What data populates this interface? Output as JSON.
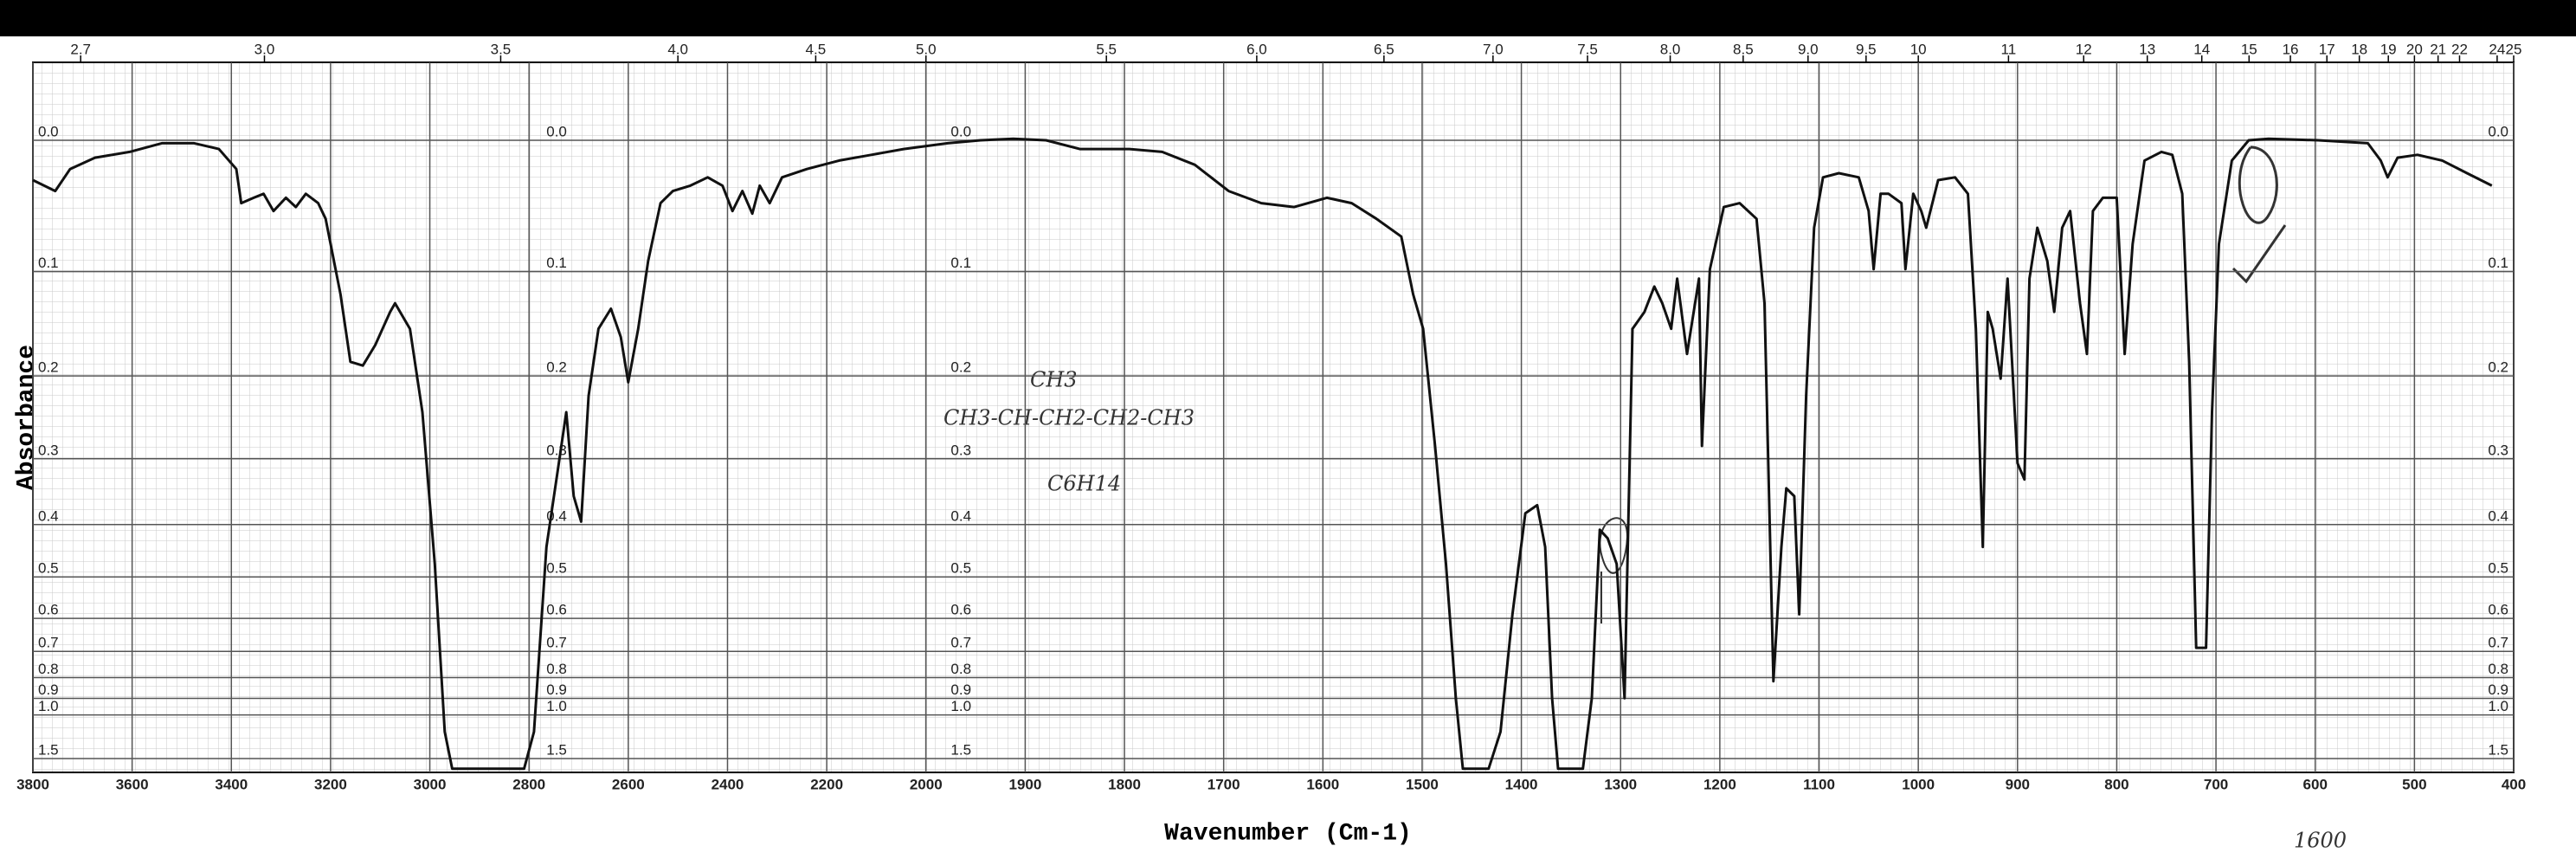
{
  "chart_data": {
    "type": "line",
    "color": "#111111",
    "yscale": "absorbance",
    "grid": true,
    "xlabel": "Wavenumber (Cm-1)",
    "ylabel": "Absorbance",
    "annotations": [
      "CH3",
      "CH3-CH-CH2-CH2-CH3",
      "C6H14",
      "1600"
    ],
    "xlim": [
      3800,
      400
    ],
    "xticks": [
      3800,
      3600,
      3400,
      3200,
      3000,
      2800,
      2600,
      2400,
      2200,
      2000,
      1900,
      1800,
      1700,
      1600,
      1500,
      1400,
      1300,
      1200,
      1100,
      1000,
      900,
      800,
      700,
      600,
      500,
      400
    ],
    "x2ticks": [
      2.7,
      {
        "value": 3,
        "label": "3.0"
      },
      3.5,
      {
        "value": 4,
        "label": "4.0"
      },
      4.5,
      {
        "value": 5,
        "label": "5.0"
      },
      5.5,
      {
        "value": 6,
        "label": "6.0"
      },
      6.5,
      {
        "value": 7,
        "label": "7.0"
      },
      7.5,
      {
        "value": 8,
        "label": "8.0"
      },
      8.5,
      {
        "value": 9,
        "label": "9.0"
      },
      9.5,
      10,
      11,
      12,
      13,
      14,
      15,
      16,
      17,
      18,
      19,
      20,
      21,
      22,
      24,
      25
    ],
    "ylim": [
      -0.05,
      2
    ],
    "yticks": [
      {
        "value": 0,
        "label": "0.0"
      },
      0.1,
      0.2,
      0.3,
      0.4,
      0.5,
      0.6,
      0.7,
      0.8,
      0.9,
      {
        "value": 1,
        "label": "1.0"
      },
      1.5
    ],
    "x": [
      3800,
      3755,
      3725,
      3675,
      3605,
      3540,
      3475,
      3425,
      3390,
      3380,
      3355,
      3335,
      3315,
      3290,
      3270,
      3250,
      3225,
      3210,
      3180,
      3160,
      3135,
      3110,
      3080,
      3070,
      3040,
      3015,
      2990,
      2970,
      2955,
      2810,
      2790,
      2765,
      2740,
      2725,
      2710,
      2695,
      2680,
      2660,
      2635,
      2615,
      2600,
      2580,
      2560,
      2535,
      2510,
      2475,
      2440,
      2410,
      2390,
      2370,
      2350,
      2335,
      2315,
      2290,
      2240,
      2175,
      2110,
      2045,
      1978,
      1945,
      1912,
      1879,
      1845,
      1795,
      1762,
      1729,
      1695,
      1662,
      1629,
      1596,
      1571,
      1546,
      1521,
      1509,
      1499,
      1487,
      1476,
      1466,
      1459,
      1433,
      1421,
      1409,
      1396,
      1384,
      1376,
      1369,
      1363,
      1338,
      1329,
      1321,
      1313,
      1304,
      1296,
      1288,
      1276,
      1266,
      1258,
      1249,
      1243,
      1233,
      1221,
      1218,
      1210,
      1196,
      1180,
      1163,
      1155,
      1146,
      1138,
      1133,
      1125,
      1120,
      1113,
      1105,
      1096,
      1080,
      1060,
      1050,
      1045,
      1038,
      1030,
      1017,
      1013,
      1005,
      997,
      992,
      980,
      963,
      950,
      942,
      935,
      930,
      925,
      917,
      910,
      900,
      893,
      888,
      880,
      870,
      863,
      855,
      847,
      837,
      830,
      824,
      814,
      800,
      792,
      784,
      772,
      755,
      744,
      734,
      727,
      720,
      710,
      704,
      697,
      684,
      667,
      647,
      597,
      547,
      534,
      527,
      517,
      497,
      472,
      447,
      422
    ],
    "values": [
      0.028,
      0.036,
      0.02,
      0.012,
      0.008,
      0.002,
      0.002,
      0.006,
      0.02,
      0.045,
      0.041,
      0.038,
      0.051,
      0.041,
      0.048,
      0.038,
      0.045,
      0.057,
      0.12,
      0.185,
      0.189,
      0.168,
      0.136,
      0.128,
      0.152,
      0.241,
      0.473,
      1.133,
      1.8,
      1.8,
      1.133,
      0.44,
      0.306,
      0.241,
      0.354,
      0.395,
      0.222,
      0.152,
      0.133,
      0.16,
      0.207,
      0.152,
      0.091,
      0.045,
      0.036,
      0.032,
      0.026,
      0.032,
      0.051,
      0.036,
      0.053,
      0.032,
      0.045,
      0.026,
      0.02,
      0.014,
      0.01,
      0.006,
      0.002,
      0,
      -0.001,
      0,
      0.006,
      0.006,
      0.008,
      0.017,
      0.036,
      0.045,
      0.048,
      0.041,
      0.045,
      0.057,
      0.071,
      0.12,
      0.152,
      0.283,
      0.473,
      0.899,
      1.8,
      1.8,
      1.133,
      0.589,
      0.381,
      0.368,
      0.44,
      0.899,
      1.8,
      1.8,
      0.899,
      0.409,
      0.424,
      0.473,
      0.899,
      0.152,
      0.136,
      0.113,
      0.128,
      0.152,
      0.106,
      0.177,
      0.106,
      0.283,
      0.098,
      0.048,
      0.045,
      0.057,
      0.128,
      0.816,
      0.44,
      0.342,
      0.354,
      0.589,
      0.222,
      0.064,
      0.026,
      0.023,
      0.026,
      0.051,
      0.098,
      0.038,
      0.038,
      0.045,
      0.098,
      0.038,
      0.051,
      0.064,
      0.028,
      0.026,
      0.038,
      0.152,
      0.44,
      0.136,
      0.152,
      0.203,
      0.106,
      0.306,
      0.329,
      0.106,
      0.064,
      0.091,
      0.136,
      0.064,
      0.051,
      0.128,
      0.177,
      0.051,
      0.041,
      0.041,
      0.177,
      0.077,
      0.014,
      0.008,
      0.01,
      0.038,
      0.185,
      0.688,
      0.688,
      0.241,
      0.077,
      0.014,
      0,
      -0.001,
      0,
      0.002,
      0.014,
      0.026,
      0.012,
      0.01,
      0.014,
      0.023,
      0.032
    ]
  }
}
